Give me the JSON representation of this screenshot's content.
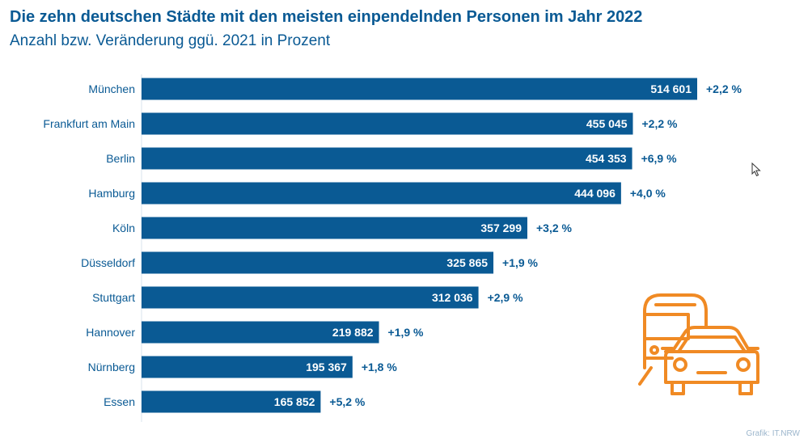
{
  "title": "Die zehn deutschen Städte mit den meisten einpendelnden Personen im Jahr 2022",
  "subtitle": "Anzahl bzw. Veränderung ggü. 2021 in Prozent",
  "source": "Grafik: IT.NRW",
  "colors": {
    "bar": "#0a5a94",
    "text": "#0a5a94",
    "icon": "#f08a24"
  },
  "icon": "train-and-car-icon",
  "chart_data": {
    "type": "bar",
    "orientation": "horizontal",
    "categories": [
      "München",
      "Frankfurt am Main",
      "Berlin",
      "Hamburg",
      "Köln",
      "Düsseldorf",
      "Stuttgart",
      "Hannover",
      "Nürnberg",
      "Essen"
    ],
    "values": [
      514601,
      455045,
      454353,
      444096,
      357299,
      325865,
      312036,
      219882,
      195367,
      165852
    ],
    "value_labels": [
      "514 601",
      "455 045",
      "454 353",
      "444 096",
      "357 299",
      "325 865",
      "312 036",
      "219 882",
      "195 367",
      "165 852"
    ],
    "change_labels": [
      "+2,2 %",
      "+2,2 %",
      "+6,9 %",
      "+4,0 %",
      "+3,2 %",
      "+1,9 %",
      "+2,9 %",
      "+1,9 %",
      "+1,8 %",
      "+5,2 %"
    ],
    "xlim": [
      0,
      514601
    ],
    "grid": false,
    "legend": "none"
  }
}
